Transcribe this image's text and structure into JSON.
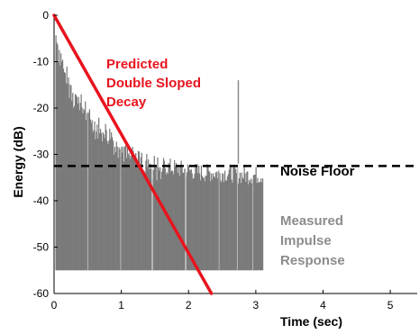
{
  "chart_data": {
    "type": "line",
    "xlabel": "Time (sec)",
    "ylabel": "Energy (dB)",
    "xlim": [
      0,
      5.4
    ],
    "ylim": [
      -60,
      0
    ],
    "xticks": [
      0,
      1,
      2,
      3,
      4,
      5
    ],
    "yticks": [
      0,
      -10,
      -20,
      -30,
      -40,
      -50,
      -60
    ],
    "series": [
      {
        "name": "Predicted Double Sloped Decay",
        "color": "#e8141e",
        "x": [
          0,
          2.34
        ],
        "y": [
          0,
          -60
        ]
      },
      {
        "name": "Noise Floor",
        "color": "#000000",
        "x": [
          0,
          5.4
        ],
        "y": [
          -32.5,
          -32.5
        ]
      },
      {
        "name": "Measured Impulse Response",
        "color": "#7a7a7a",
        "envelope_x": [
          0,
          0.05,
          0.1,
          0.2,
          0.3,
          0.4,
          0.5,
          0.6,
          0.8,
          1.0,
          1.2,
          1.4,
          1.6,
          1.8,
          2.0,
          2.2,
          2.4,
          2.6,
          2.8,
          3.0,
          3.1
        ],
        "envelope_y": [
          -1,
          -5,
          -9,
          -13,
          -16,
          -18,
          -20,
          -22,
          -25,
          -27,
          -29,
          -31,
          -32.5,
          -33,
          -33.5,
          -34,
          -34,
          -34,
          -34.5,
          -34.5,
          -34.5
        ],
        "base": -55,
        "x_end": 3.1,
        "gaps_x": [
          0.5,
          0.98,
          1.45,
          1.95,
          2.45,
          2.72,
          2.95
        ],
        "spike_x": 2.74,
        "spike_y": -14
      }
    ],
    "annotations": {
      "predicted": [
        "Predicted",
        "Double Sloped",
        "Decay"
      ],
      "noise_floor": "Noise Floor",
      "measured": [
        "Measured",
        "Impulse",
        "Response"
      ]
    }
  }
}
